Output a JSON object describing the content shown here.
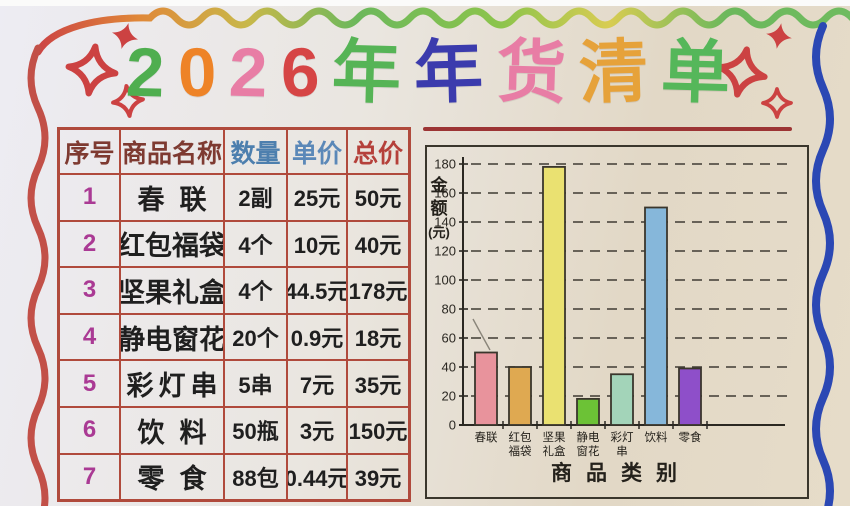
{
  "title": {
    "text": "2026年年货清单",
    "chars": [
      {
        "ch": "2",
        "color": "#4fae4f"
      },
      {
        "ch": "0",
        "color": "#ee8327"
      },
      {
        "ch": "2",
        "color": "#e87da5"
      },
      {
        "ch": "6",
        "color": "#d64545"
      },
      {
        "ch": "年",
        "color": "#56b456"
      },
      {
        "ch": "年",
        "color": "#3b3bad"
      },
      {
        "ch": "货",
        "color": "#e87da5"
      },
      {
        "ch": "清",
        "color": "#e6a23a"
      },
      {
        "ch": "单",
        "color": "#55b75a"
      }
    ]
  },
  "table": {
    "headers": [
      {
        "label": "序号",
        "color": "#7e3a31"
      },
      {
        "label": "商品名称",
        "color": "#7e3a31"
      },
      {
        "label": "数量",
        "color": "#4d7fae"
      },
      {
        "label": "单价",
        "color": "#5b88b8"
      },
      {
        "label": "总价",
        "color": "#b5403a"
      }
    ],
    "rows": [
      {
        "index": "1",
        "name": "春联",
        "qty": "2副",
        "unit_price": "25元",
        "total": "50元"
      },
      {
        "index": "2",
        "name": "红包福袋",
        "qty": "4个",
        "unit_price": "10元",
        "total": "40元"
      },
      {
        "index": "3",
        "name": "坚果礼盒",
        "qty": "4个",
        "unit_price": "44.5元",
        "total": "178元"
      },
      {
        "index": "4",
        "name": "静电窗花",
        "qty": "20个",
        "unit_price": "0.9元",
        "total": "18元"
      },
      {
        "index": "5",
        "name": "彩灯串",
        "qty": "5串",
        "unit_price": "7元",
        "total": "35元"
      },
      {
        "index": "6",
        "name": "饮料",
        "qty": "50瓶",
        "unit_price": "3元",
        "total": "150元"
      },
      {
        "index": "7",
        "name": "零食",
        "qty": "88包",
        "unit_price": "0.44元",
        "total": "39元"
      }
    ]
  },
  "chart_data": {
    "type": "bar",
    "title": "",
    "categories": [
      "春联",
      "红包福袋",
      "坚果礼盒",
      "静电窗花",
      "彩灯串",
      "饮料",
      "零食"
    ],
    "values": [
      50,
      40,
      178,
      18,
      35,
      150,
      39
    ],
    "bar_colors": [
      "#e8939c",
      "#dfa951",
      "#eae171",
      "#6cc236",
      "#a3d4b9",
      "#86b7da",
      "#8e4fc9"
    ],
    "xlabel": "商品类别",
    "ylabel": "金额(元)",
    "ylabel_stack": [
      "金",
      "额",
      "(元)"
    ],
    "ylim": [
      0,
      180
    ],
    "ytick_step": 20,
    "yticks": [
      0,
      20,
      40,
      60,
      80,
      100,
      120,
      140,
      160,
      180
    ],
    "grid": "horizontal-dashed",
    "legend": "none"
  },
  "colors": {
    "table_border": "#b04a3c",
    "maroon_rule": "#9c3434",
    "frame": "#3a362c",
    "grid_line": "#3f3b33",
    "axis_text": "#2b2822",
    "left_wave": "#c25048",
    "right_wave": "#2b48b4",
    "sparkle": "#cc4242",
    "edge_mark": "#c04040",
    "index_number": "#aa3a94",
    "rainbow": [
      "#cc4444",
      "#e08838",
      "#c8b84a",
      "#6cb85c",
      "#8cc44c",
      "#d8cc52",
      "#6cb85c",
      "#70bc60"
    ]
  }
}
